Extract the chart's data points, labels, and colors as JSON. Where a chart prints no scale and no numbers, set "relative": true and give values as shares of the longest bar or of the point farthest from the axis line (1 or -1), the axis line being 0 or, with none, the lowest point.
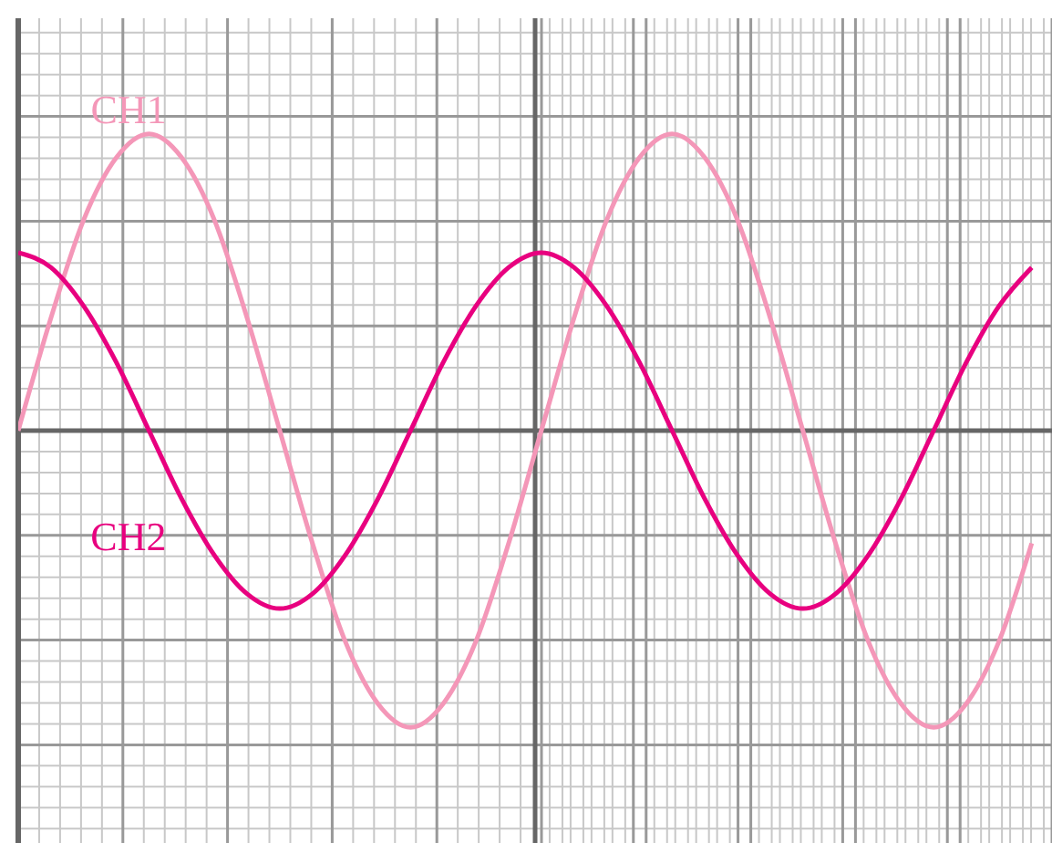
{
  "chart_data": {
    "type": "line",
    "relative": true,
    "grid": true,
    "legend": false,
    "marker": "none",
    "line_style": "solid",
    "tick_labels": false,
    "categories": [
      null,
      null,
      null,
      null,
      null,
      null,
      null,
      null,
      null,
      null,
      null,
      null,
      null,
      null,
      null,
      null,
      null,
      null,
      null,
      null,
      null,
      null,
      null,
      null,
      null,
      null,
      null,
      null,
      null,
      null,
      null,
      null
    ],
    "series": [
      {
        "name": "CH1",
        "color": "#f497b8",
        "values": [
          0,
          0.38,
          0.71,
          0.92,
          1,
          0.92,
          0.71,
          0.38,
          0,
          -0.38,
          -0.71,
          -0.92,
          -1,
          -0.92,
          -0.71,
          -0.38,
          0,
          0.38,
          0.71,
          0.92,
          1,
          0.92,
          0.71,
          0.38,
          0,
          -0.38,
          -0.71,
          -0.92,
          -1,
          -0.92,
          -0.71,
          -0.38
        ]
      },
      {
        "name": "CH2",
        "color": "#e8007f",
        "values": [
          0.6,
          0.55,
          0.42,
          0.23,
          0,
          -0.23,
          -0.42,
          -0.55,
          -0.6,
          -0.55,
          -0.42,
          -0.23,
          0,
          0.23,
          0.42,
          0.55,
          0.6,
          0.55,
          0.42,
          0.23,
          0,
          -0.23,
          -0.42,
          -0.55,
          -0.6,
          -0.55,
          -0.42,
          -0.23,
          0,
          0.23,
          0.42,
          0.55
        ]
      }
    ]
  }
}
